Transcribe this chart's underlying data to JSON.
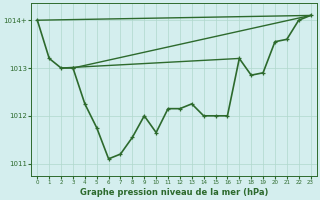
{
  "series": [
    {
      "name": "line_start",
      "x": [
        0,
        1,
        2,
        3
      ],
      "y": [
        1014.0,
        1013.2,
        1013.0,
        1013.0
      ],
      "color": "#2d6a2d",
      "linewidth": 1.2,
      "marker": "+"
    },
    {
      "name": "line_main",
      "x": [
        3,
        4,
        5,
        6,
        7,
        8,
        9,
        10,
        11,
        12,
        13,
        14,
        15,
        16,
        17,
        18,
        19,
        20,
        21,
        22,
        23
      ],
      "y": [
        1013.0,
        1012.25,
        1011.75,
        1011.1,
        1011.2,
        1011.55,
        1012.0,
        1011.65,
        1012.15,
        1012.15,
        1012.25,
        1012.0,
        1012.0,
        1012.0,
        1013.2,
        1012.85,
        1012.9,
        1013.55,
        1013.6,
        1014.0,
        1014.1
      ],
      "color": "#2d6a2d",
      "linewidth": 1.2,
      "marker": "+"
    },
    {
      "name": "straight_0_to_23",
      "x": [
        0,
        23
      ],
      "y": [
        1014.0,
        1014.1
      ],
      "color": "#2d6a2d",
      "linewidth": 1.0,
      "marker": null
    },
    {
      "name": "straight_3_to_23",
      "x": [
        3,
        23
      ],
      "y": [
        1013.0,
        1014.1
      ],
      "color": "#2d6a2d",
      "linewidth": 1.0,
      "marker": null
    },
    {
      "name": "straight_2_to_17",
      "x": [
        2,
        17
      ],
      "y": [
        1013.0,
        1013.2
      ],
      "color": "#2d6a2d",
      "linewidth": 1.0,
      "marker": null
    }
  ],
  "xlim": [
    -0.5,
    23.5
  ],
  "ylim": [
    1010.75,
    1014.35
  ],
  "yticks": [
    1011,
    1012,
    1013,
    1014
  ],
  "ytick_labels": [
    "1011",
    "1012",
    "1013",
    "1014+"
  ],
  "xticks": [
    0,
    1,
    2,
    3,
    4,
    5,
    6,
    7,
    8,
    9,
    10,
    11,
    12,
    13,
    14,
    15,
    16,
    17,
    18,
    19,
    20,
    21,
    22,
    23
  ],
  "xlabel": "Graphe pression niveau de la mer (hPa)",
  "background_color": "#d4eeee",
  "grid_color": "#b0d8cc",
  "text_color": "#2d6a2d",
  "tick_color": "#2d6a2d",
  "figsize": [
    3.2,
    2.0
  ],
  "dpi": 100
}
